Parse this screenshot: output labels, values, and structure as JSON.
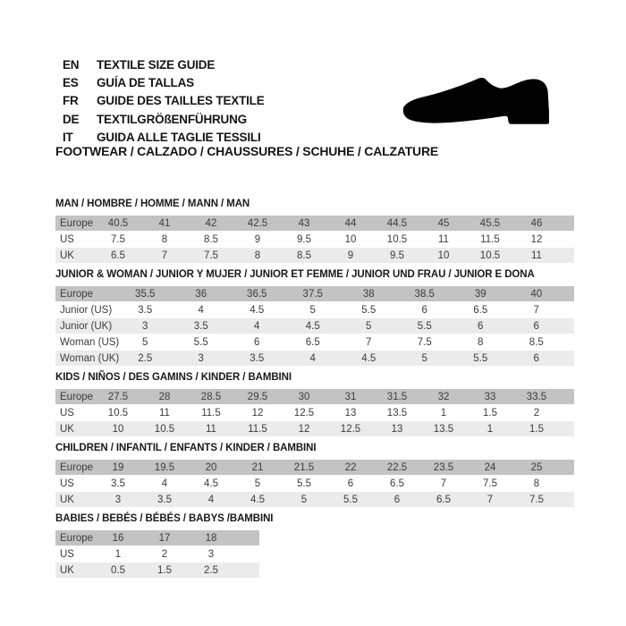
{
  "header": {
    "languages": [
      {
        "code": "EN",
        "label": "TEXTILE SIZE GUIDE"
      },
      {
        "code": "ES",
        "label": "GUÍA DE TALLAS"
      },
      {
        "code": "FR",
        "label": "GUIDE DES TAILLES TEXTILE"
      },
      {
        "code": "DE",
        "label": "TEXTILGRÖßENFÜHRUNG"
      },
      {
        "code": "IT",
        "label": "GUIDA ALLE TAGLIE TESSILI"
      }
    ],
    "icon": "dress-shoe-icon",
    "category_heading": "FOOTWEAR / CALZADO / CHAUSSURES / SCHUHE / CALZATURE"
  },
  "colors": {
    "header_row_bg": "#c3c3c3",
    "alt_row_bg": "#ebebeb",
    "text": "#3c3c3c",
    "shoe_icon": "#000000"
  },
  "tables": [
    {
      "id": "man",
      "title": "MAN / HOMBRE / HOMME / MANN / MAN",
      "rows": [
        {
          "label": "Europe",
          "values": [
            "40.5",
            "41",
            "42",
            "42.5",
            "43",
            "44",
            "44.5",
            "45",
            "45.5",
            "46"
          ]
        },
        {
          "label": "US",
          "values": [
            "7.5",
            "8",
            "8.5",
            "9",
            "9.5",
            "10",
            "10.5",
            "11",
            "11.5",
            "12"
          ]
        },
        {
          "label": "UK",
          "values": [
            "6.5",
            "7",
            "7.5",
            "8",
            "8.5",
            "9",
            "9.5",
            "10",
            "10.5",
            "11"
          ]
        }
      ]
    },
    {
      "id": "junior-woman",
      "title": "JUNIOR & WOMAN / JUNIOR Y MUJER / JUNIOR ET FEMME / JUNIOR UND FRAU / JUNIOR E DONA",
      "rows": [
        {
          "label": "Europe",
          "values": [
            "35.5",
            "36",
            "36.5",
            "37.5",
            "38",
            "38.5",
            "39",
            "40"
          ]
        },
        {
          "label": "Junior (US)",
          "values": [
            "3.5",
            "4",
            "4.5",
            "5",
            "5.5",
            "6",
            "6.5",
            "7"
          ]
        },
        {
          "label": "Junior (UK)",
          "values": [
            "3",
            "3.5",
            "4",
            "4.5",
            "5",
            "5.5",
            "6",
            "6"
          ]
        },
        {
          "label": "Woman (US)",
          "values": [
            "5",
            "5.5",
            "6",
            "6.5",
            "7",
            "7.5",
            "8",
            "8.5"
          ]
        },
        {
          "label": "Woman (UK)",
          "values": [
            "2.5",
            "3",
            "3.5",
            "4",
            "4.5",
            "5",
            "5.5",
            "6"
          ]
        }
      ]
    },
    {
      "id": "kids",
      "title": "KIDS / NIÑOS / DES GAMINS / KINDER / BAMBINI",
      "rows": [
        {
          "label": "Europe",
          "values": [
            "27.5",
            "28",
            "28.5",
            "29.5",
            "30",
            "31",
            "31.5",
            "32",
            "33",
            "33.5"
          ]
        },
        {
          "label": "US",
          "values": [
            "10.5",
            "11",
            "11.5",
            "12",
            "12.5",
            "13",
            "13.5",
            "1",
            "1.5",
            "2"
          ]
        },
        {
          "label": "UK",
          "values": [
            "10",
            "10.5",
            "11",
            "11.5",
            "12",
            "12.5",
            "13",
            "13.5",
            "1",
            "1.5"
          ]
        }
      ]
    },
    {
      "id": "children",
      "title": "CHILDREN / INFANTIL / ENFANTS / KINDER / BAMBINI",
      "rows": [
        {
          "label": "Europe",
          "values": [
            "19",
            "19.5",
            "20",
            "21",
            "21.5",
            "22",
            "22.5",
            "23.5",
            "24",
            "25"
          ]
        },
        {
          "label": "US",
          "values": [
            "3.5",
            "4",
            "4.5",
            "5",
            "5.5",
            "6",
            "6.5",
            "7",
            "7.5",
            "8"
          ]
        },
        {
          "label": "UK",
          "values": [
            "3",
            "3.5",
            "4",
            "4.5",
            "5",
            "5.5",
            "6",
            "6.5",
            "7",
            "7.5"
          ]
        }
      ]
    },
    {
      "id": "babies",
      "title": "BABIES / BEBÉS / BÉBÉS / BABYS /BAMBINI",
      "rows": [
        {
          "label": "Europe",
          "values": [
            "16",
            "17",
            "18"
          ]
        },
        {
          "label": "US",
          "values": [
            "1",
            "2",
            "3"
          ]
        },
        {
          "label": "UK",
          "values": [
            "0.5",
            "1.5",
            "2.5"
          ]
        }
      ]
    }
  ]
}
